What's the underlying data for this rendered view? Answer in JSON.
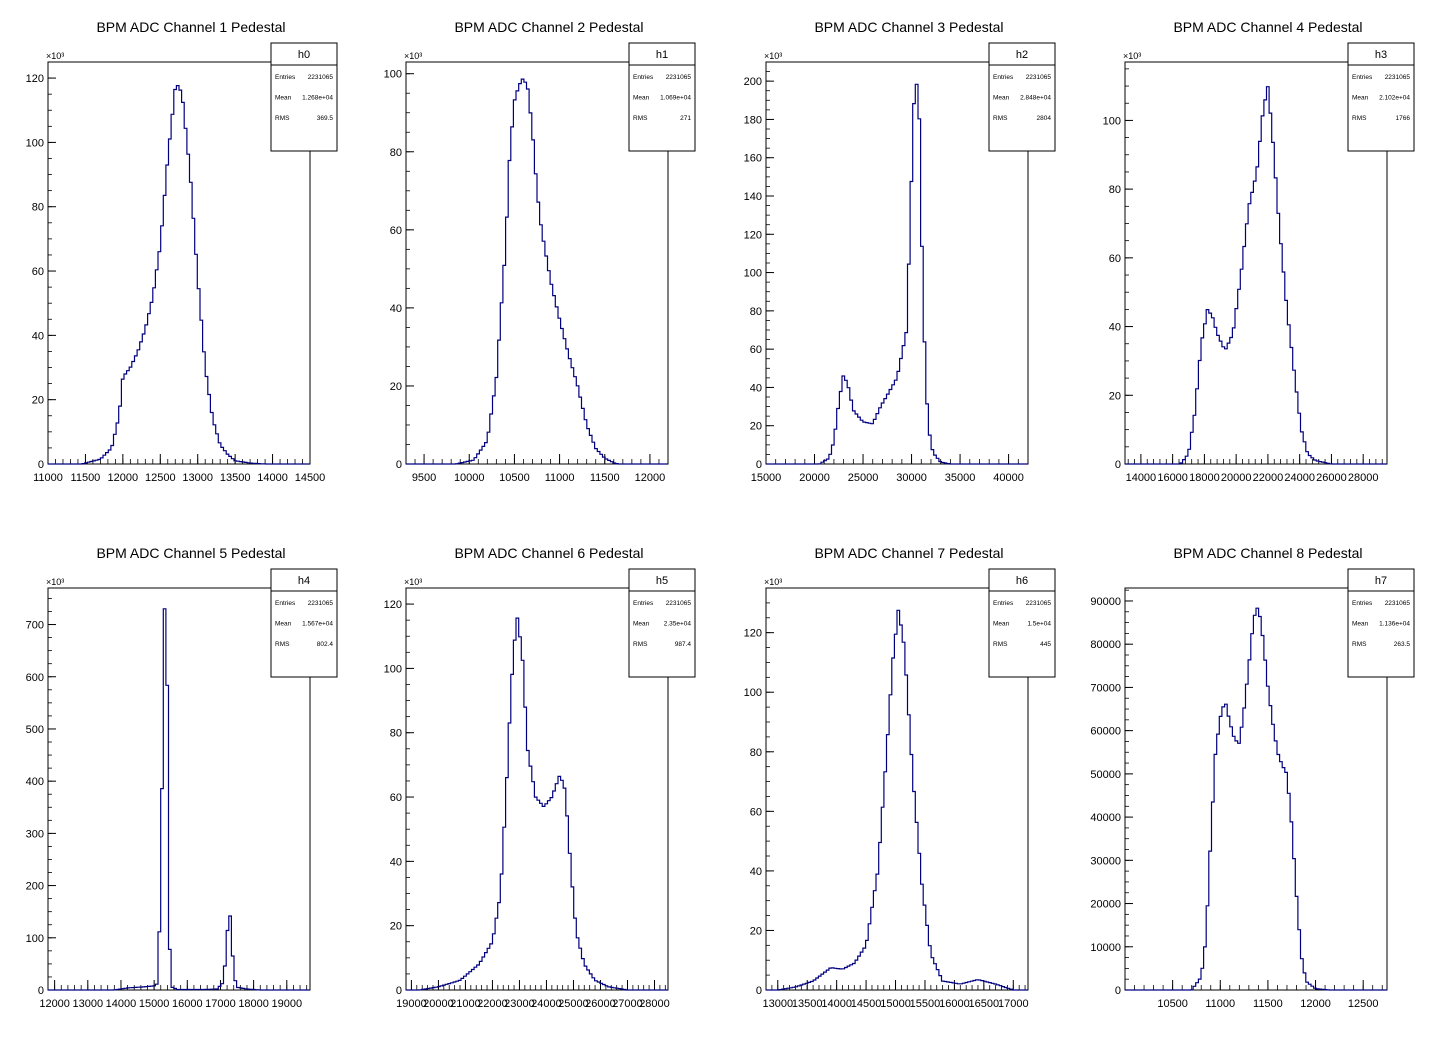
{
  "chart_data": [
    {
      "id": "h0",
      "type": "histogram",
      "title": "BPM ADC Channel 1 Pedestal",
      "xlim": [
        11000,
        14500
      ],
      "ylim": [
        0,
        125
      ],
      "y_multiplier": "×10³",
      "xticks": [
        11000,
        11500,
        12000,
        12500,
        13000,
        13500,
        14000,
        14500
      ],
      "yticks": [
        0,
        20,
        40,
        60,
        80,
        100,
        120
      ],
      "xtick_labels": [
        "11000",
        "11500",
        "12000",
        "12500",
        "13000",
        "13500",
        "14000",
        "14500"
      ],
      "ytick_labels": [
        "0",
        "20",
        "40",
        "60",
        "80",
        "100",
        "120"
      ],
      "stats": {
        "name": "h0",
        "Entries": "2231065",
        "Mean": "1.268e+04",
        "RMS": "369.5"
      },
      "curve": [
        [
          11450,
          0
        ],
        [
          11700,
          1.5
        ],
        [
          11850,
          5
        ],
        [
          11950,
          15
        ],
        [
          12000,
          27
        ],
        [
          12100,
          30
        ],
        [
          12200,
          35
        ],
        [
          12300,
          42
        ],
        [
          12400,
          52
        ],
        [
          12500,
          68
        ],
        [
          12600,
          95
        ],
        [
          12700,
          117
        ],
        [
          12750,
          118
        ],
        [
          12800,
          113
        ],
        [
          12900,
          90
        ],
        [
          13000,
          58
        ],
        [
          13100,
          30
        ],
        [
          13200,
          14
        ],
        [
          13300,
          6
        ],
        [
          13400,
          3
        ],
        [
          13500,
          1
        ],
        [
          13700,
          0.3
        ],
        [
          13900,
          0
        ]
      ]
    },
    {
      "id": "h1",
      "type": "histogram",
      "title": "BPM ADC Channel 2 Pedestal",
      "xlim": [
        9300,
        12200
      ],
      "ylim": [
        0,
        103
      ],
      "y_multiplier": "×10³",
      "xticks": [
        9500,
        10000,
        10500,
        11000,
        11500,
        12000
      ],
      "yticks": [
        0,
        20,
        40,
        60,
        80,
        100
      ],
      "xtick_labels": [
        "9500",
        "10000",
        "10500",
        "11000",
        "11500",
        "12000"
      ],
      "ytick_labels": [
        "0",
        "20",
        "40",
        "60",
        "80",
        "100"
      ],
      "stats": {
        "name": "h1",
        "Entries": "2231065",
        "Mean": "1.069e+04",
        "RMS": "271"
      },
      "curve": [
        [
          9850,
          0
        ],
        [
          10050,
          1
        ],
        [
          10200,
          6
        ],
        [
          10300,
          22
        ],
        [
          10400,
          55
        ],
        [
          10450,
          80
        ],
        [
          10500,
          93
        ],
        [
          10550,
          97
        ],
        [
          10600,
          99
        ],
        [
          10650,
          96
        ],
        [
          10700,
          85
        ],
        [
          10750,
          70
        ],
        [
          10800,
          60
        ],
        [
          10900,
          47
        ],
        [
          11000,
          37
        ],
        [
          11100,
          28
        ],
        [
          11200,
          20
        ],
        [
          11300,
          10
        ],
        [
          11400,
          4
        ],
        [
          11500,
          1.5
        ],
        [
          11600,
          0.3
        ],
        [
          11650,
          0
        ]
      ]
    },
    {
      "id": "h2",
      "type": "histogram",
      "title": "BPM ADC Channel 3 Pedestal",
      "xlim": [
        15000,
        42000
      ],
      "ylim": [
        0,
        210
      ],
      "y_multiplier": "×10³",
      "xticks": [
        15000,
        20000,
        25000,
        30000,
        35000,
        40000
      ],
      "yticks": [
        0,
        20,
        40,
        60,
        80,
        100,
        120,
        140,
        160,
        180,
        200
      ],
      "xtick_labels": [
        "15000",
        "20000",
        "25000",
        "30000",
        "35000",
        "40000"
      ],
      "ytick_labels": [
        "0",
        "20",
        "40",
        "60",
        "80",
        "100",
        "120",
        "140",
        "160",
        "180",
        "200"
      ],
      "stats": {
        "name": "h2",
        "Entries": "2231065",
        "Mean": "2.848e+04",
        "RMS": "2804"
      },
      "curve": [
        [
          20500,
          0
        ],
        [
          21500,
          3
        ],
        [
          22000,
          12
        ],
        [
          22500,
          32
        ],
        [
          23000,
          47
        ],
        [
          23500,
          40
        ],
        [
          24000,
          28
        ],
        [
          25000,
          22
        ],
        [
          26000,
          21
        ],
        [
          26800,
          30
        ],
        [
          27500,
          36
        ],
        [
          28500,
          45
        ],
        [
          29500,
          70
        ],
        [
          30000,
          150
        ],
        [
          30300,
          195
        ],
        [
          30500,
          200
        ],
        [
          30800,
          180
        ],
        [
          31200,
          80
        ],
        [
          31700,
          20
        ],
        [
          32200,
          6
        ],
        [
          33000,
          1
        ],
        [
          34000,
          0
        ]
      ]
    },
    {
      "id": "h3",
      "type": "histogram",
      "title": "BPM ADC Channel 4 Pedestal",
      "xlim": [
        13000,
        29500
      ],
      "ylim": [
        0,
        117
      ],
      "y_multiplier": "×10³",
      "xticks": [
        14000,
        16000,
        18000,
        20000,
        22000,
        24000,
        26000,
        28000
      ],
      "yticks": [
        0,
        20,
        40,
        60,
        80,
        100
      ],
      "xtick_labels": [
        "14000",
        "16000",
        "18000",
        "20000",
        "22000",
        "24000",
        "26000",
        "28000"
      ],
      "ytick_labels": [
        "0",
        "20",
        "40",
        "60",
        "80",
        "100"
      ],
      "stats": {
        "name": "h3",
        "Entries": "2231065",
        "Mean": "2.102e+04",
        "RMS": "1766"
      },
      "curve": [
        [
          16500,
          0
        ],
        [
          17000,
          3
        ],
        [
          17400,
          15
        ],
        [
          17800,
          35
        ],
        [
          18200,
          45
        ],
        [
          18500,
          43
        ],
        [
          18800,
          38
        ],
        [
          19300,
          33
        ],
        [
          19800,
          38
        ],
        [
          20300,
          55
        ],
        [
          20800,
          75
        ],
        [
          21300,
          85
        ],
        [
          21700,
          103
        ],
        [
          22000,
          110
        ],
        [
          22300,
          95
        ],
        [
          22700,
          70
        ],
        [
          23200,
          45
        ],
        [
          23700,
          25
        ],
        [
          24100,
          10
        ],
        [
          24500,
          3
        ],
        [
          25000,
          1
        ],
        [
          26000,
          0
        ]
      ]
    },
    {
      "id": "h4",
      "type": "histogram",
      "title": "BPM ADC Channel 5 Pedestal",
      "xlim": [
        11800,
        19700
      ],
      "ylim": [
        0,
        770
      ],
      "y_multiplier": "×10³",
      "xticks": [
        12000,
        13000,
        14000,
        15000,
        16000,
        17000,
        18000,
        19000
      ],
      "yticks": [
        0,
        100,
        200,
        300,
        400,
        500,
        600,
        700
      ],
      "xtick_labels": [
        "12000",
        "13000",
        "14000",
        "15000",
        "16000",
        "17000",
        "18000",
        "19000"
      ],
      "ytick_labels": [
        "0",
        "100",
        "200",
        "300",
        "400",
        "500",
        "600",
        "700"
      ],
      "stats": {
        "name": "h4",
        "Entries": "2231065",
        "Mean": "1.567e+04",
        "RMS": "802.4"
      },
      "curve": [
        [
          13800,
          0
        ],
        [
          14200,
          4
        ],
        [
          14700,
          6
        ],
        [
          15000,
          8
        ],
        [
          15100,
          12
        ],
        [
          15200,
          185
        ],
        [
          15300,
          735
        ],
        [
          15380,
          710
        ],
        [
          15450,
          100
        ],
        [
          15550,
          5
        ],
        [
          15700,
          1
        ],
        [
          16500,
          1
        ],
        [
          16900,
          2
        ],
        [
          17100,
          15
        ],
        [
          17200,
          110
        ],
        [
          17300,
          145
        ],
        [
          17400,
          30
        ],
        [
          17500,
          5
        ],
        [
          17800,
          2
        ],
        [
          18200,
          0
        ]
      ]
    },
    {
      "id": "h5",
      "type": "histogram",
      "title": "BPM ADC Channel 6 Pedestal",
      "xlim": [
        18800,
        28500
      ],
      "ylim": [
        0,
        125
      ],
      "y_multiplier": "×10³",
      "xticks": [
        19000,
        20000,
        21000,
        22000,
        23000,
        24000,
        25000,
        26000,
        27000,
        28000
      ],
      "yticks": [
        0,
        20,
        40,
        60,
        80,
        100,
        120
      ],
      "xtick_labels": [
        "19000",
        "20000",
        "21000",
        "22000",
        "23000",
        "24000",
        "25000",
        "26000",
        "27000",
        "28000"
      ],
      "ytick_labels": [
        "0",
        "20",
        "40",
        "60",
        "80",
        "100",
        "120"
      ],
      "stats": {
        "name": "h5",
        "Entries": "2231065",
        "Mean": "2.35e+04",
        "RMS": "987.4"
      },
      "curve": [
        [
          19300,
          0
        ],
        [
          20000,
          1
        ],
        [
          20800,
          3
        ],
        [
          21500,
          8
        ],
        [
          22000,
          15
        ],
        [
          22300,
          30
        ],
        [
          22500,
          60
        ],
        [
          22700,
          95
        ],
        [
          22900,
          117
        ],
        [
          23100,
          105
        ],
        [
          23300,
          75
        ],
        [
          23600,
          60
        ],
        [
          23900,
          57
        ],
        [
          24200,
          60
        ],
        [
          24500,
          67
        ],
        [
          24700,
          62
        ],
        [
          24900,
          38
        ],
        [
          25100,
          18
        ],
        [
          25400,
          8
        ],
        [
          25800,
          3
        ],
        [
          26300,
          1
        ],
        [
          27000,
          0
        ]
      ]
    },
    {
      "id": "h6",
      "type": "histogram",
      "title": "BPM ADC Channel 7 Pedestal",
      "xlim": [
        12800,
        17250
      ],
      "ylim": [
        0,
        135
      ],
      "y_multiplier": "×10³",
      "xticks": [
        13000,
        13500,
        14000,
        14500,
        15000,
        15500,
        16000,
        16500,
        17000
      ],
      "yticks": [
        0,
        20,
        40,
        60,
        80,
        100,
        120
      ],
      "xtick_labels": [
        "13000",
        "13500",
        "14000",
        "14500",
        "15000",
        "15500",
        "16000",
        "16500",
        "17000"
      ],
      "ytick_labels": [
        "0",
        "20",
        "40",
        "60",
        "80",
        "100",
        "120"
      ],
      "stats": {
        "name": "h6",
        "Entries": "2231065",
        "Mean": "1.5e+04",
        "RMS": "445"
      },
      "curve": [
        [
          13000,
          0
        ],
        [
          13300,
          1
        ],
        [
          13600,
          3
        ],
        [
          13800,
          6
        ],
        [
          13900,
          7.5
        ],
        [
          14100,
          7
        ],
        [
          14300,
          9
        ],
        [
          14500,
          15
        ],
        [
          14700,
          40
        ],
        [
          14850,
          80
        ],
        [
          14950,
          110
        ],
        [
          15050,
          128
        ],
        [
          15150,
          115
        ],
        [
          15300,
          70
        ],
        [
          15450,
          35
        ],
        [
          15600,
          12
        ],
        [
          15800,
          3
        ],
        [
          16100,
          2
        ],
        [
          16400,
          3.5
        ],
        [
          16700,
          2
        ],
        [
          17000,
          0
        ]
      ]
    },
    {
      "id": "h7",
      "type": "histogram",
      "title": "BPM ADC Channel 8 Pedestal",
      "xlim": [
        10000,
        12750
      ],
      "ylim": [
        0,
        93000
      ],
      "y_multiplier": "",
      "xticks": [
        10500,
        11000,
        11500,
        12000,
        12500
      ],
      "yticks": [
        0,
        10000,
        20000,
        30000,
        40000,
        50000,
        60000,
        70000,
        80000,
        90000
      ],
      "xtick_labels": [
        "10500",
        "11000",
        "11500",
        "12000",
        "12500"
      ],
      "ytick_labels": [
        "0",
        "10000",
        "20000",
        "30000",
        "40000",
        "50000",
        "60000",
        "70000",
        "80000",
        "90000"
      ],
      "stats": {
        "name": "h7",
        "Entries": "2231065",
        "Mean": "1.136e+04",
        "RMS": "263.5"
      },
      "curve": [
        [
          10700,
          0
        ],
        [
          10800,
          3000
        ],
        [
          10850,
          12000
        ],
        [
          10900,
          35000
        ],
        [
          10950,
          55000
        ],
        [
          11000,
          63000
        ],
        [
          11050,
          67000
        ],
        [
          11100,
          62000
        ],
        [
          11150,
          58000
        ],
        [
          11200,
          57000
        ],
        [
          11250,
          65000
        ],
        [
          11300,
          75000
        ],
        [
          11350,
          86000
        ],
        [
          11400,
          89000
        ],
        [
          11450,
          81000
        ],
        [
          11500,
          70000
        ],
        [
          11550,
          62000
        ],
        [
          11600,
          55000
        ],
        [
          11650,
          52000
        ],
        [
          11700,
          50000
        ],
        [
          11750,
          38000
        ],
        [
          11800,
          22000
        ],
        [
          11850,
          8000
        ],
        [
          11900,
          2000
        ],
        [
          12000,
          300
        ],
        [
          12150,
          0
        ]
      ]
    }
  ],
  "colors": {
    "line": "#000080",
    "frame": "#000000",
    "background": "#ffffff"
  }
}
